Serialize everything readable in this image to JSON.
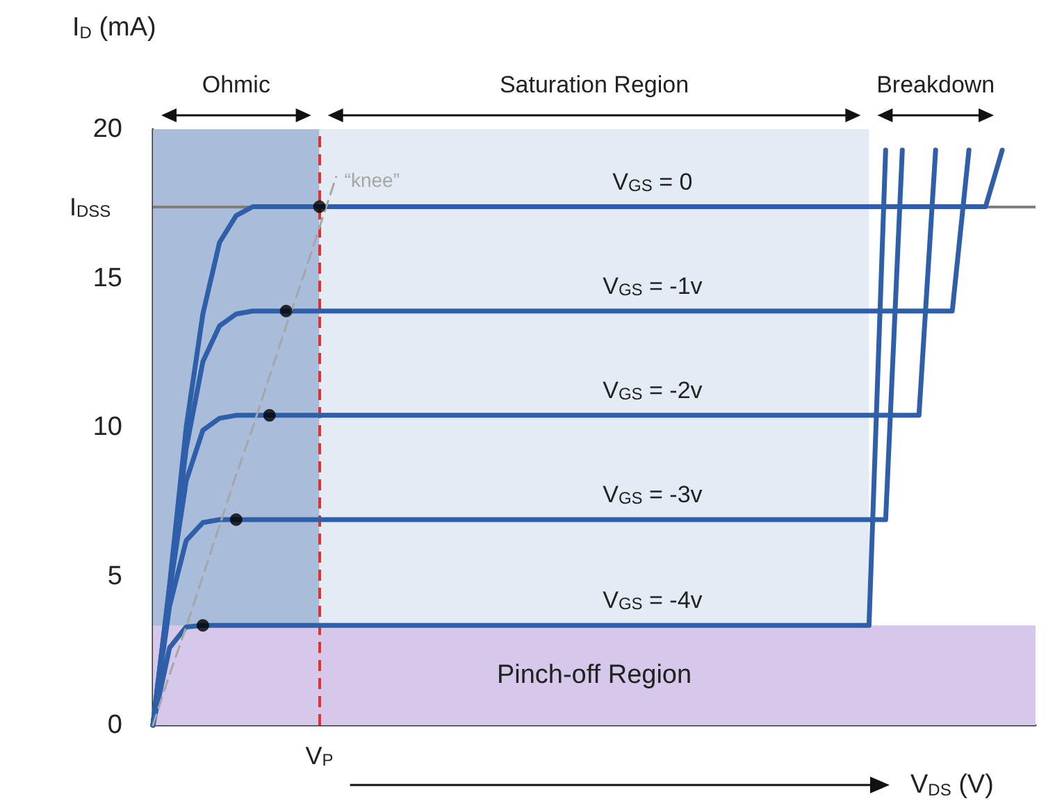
{
  "chart_data": {
    "type": "line",
    "ylabel": "I$_{D}$ (mA)",
    "xlabel": "V$_{DS}$ (V)",
    "ylim": [
      0,
      20
    ],
    "yticks": [
      0,
      5,
      10,
      15,
      20
    ],
    "tick_labels": "y",
    "grid": false,
    "legend": false,
    "marker": "none",
    "line_style": "solid",
    "categories": [
      null,
      null,
      null,
      null,
      null,
      null,
      null,
      null,
      null,
      null,
      null,
      null,
      null,
      null,
      null,
      null,
      null,
      null,
      null,
      null,
      null,
      null,
      null,
      null,
      null,
      null,
      null,
      null,
      null,
      null,
      null,
      null,
      null,
      null,
      null,
      null,
      null,
      null,
      null,
      null,
      null,
      null,
      null,
      null,
      null,
      null,
      null,
      null,
      null,
      null,
      null,
      null
    ],
    "series": [
      {
        "name": "V$_{GS}$ = 0",
        "color": "#2e5fa8",
        "values": [
          0,
          4.7,
          10,
          13.8,
          16.2,
          17.1,
          17.4,
          17.4,
          17.4,
          17.4,
          17.4,
          17.4,
          17.4,
          17.4,
          17.4,
          17.4,
          17.4,
          17.4,
          17.4,
          17.4,
          17.4,
          17.4,
          17.4,
          17.4,
          17.4,
          17.4,
          17.4,
          17.4,
          17.4,
          17.4,
          17.4,
          17.4,
          17.4,
          17.4,
          17.4,
          17.4,
          17.4,
          17.4,
          17.4,
          17.4,
          17.4,
          17.4,
          17.4,
          17.4,
          17.4,
          17.4,
          17.4,
          17.4,
          17.4,
          17.4,
          17.4,
          19.3
        ]
      },
      {
        "name": "V$_{GS}$ = -1v",
        "color": "#2e5fa8",
        "values": [
          0,
          4.6,
          9.3,
          12.2,
          13.4,
          13.8,
          13.9,
          13.9,
          13.9,
          13.9,
          13.9,
          13.9,
          13.9,
          13.9,
          13.9,
          13.9,
          13.9,
          13.9,
          13.9,
          13.9,
          13.9,
          13.9,
          13.9,
          13.9,
          13.9,
          13.9,
          13.9,
          13.9,
          13.9,
          13.9,
          13.9,
          13.9,
          13.9,
          13.9,
          13.9,
          13.9,
          13.9,
          13.9,
          13.9,
          13.9,
          13.9,
          13.9,
          13.9,
          13.9,
          13.9,
          13.9,
          13.9,
          13.9,
          13.9,
          19.3,
          null,
          null
        ]
      },
      {
        "name": "V$_{GS}$ = -2v",
        "color": "#2e5fa8",
        "values": [
          0,
          4.5,
          8.2,
          9.9,
          10.3,
          10.4,
          10.4,
          10.4,
          10.4,
          10.4,
          10.4,
          10.4,
          10.4,
          10.4,
          10.4,
          10.4,
          10.4,
          10.4,
          10.4,
          10.4,
          10.4,
          10.4,
          10.4,
          10.4,
          10.4,
          10.4,
          10.4,
          10.4,
          10.4,
          10.4,
          10.4,
          10.4,
          10.4,
          10.4,
          10.4,
          10.4,
          10.4,
          10.4,
          10.4,
          10.4,
          10.4,
          10.4,
          10.4,
          10.4,
          10.4,
          10.4,
          10.4,
          19.3,
          null,
          null,
          null,
          null
        ]
      },
      {
        "name": "V$_{GS}$ = -3v",
        "color": "#2e5fa8",
        "values": [
          0,
          4,
          6.2,
          6.8,
          6.9,
          6.9,
          6.9,
          6.9,
          6.9,
          6.9,
          6.9,
          6.9,
          6.9,
          6.9,
          6.9,
          6.9,
          6.9,
          6.9,
          6.9,
          6.9,
          6.9,
          6.9,
          6.9,
          6.9,
          6.9,
          6.9,
          6.9,
          6.9,
          6.9,
          6.9,
          6.9,
          6.9,
          6.9,
          6.9,
          6.9,
          6.9,
          6.9,
          6.9,
          6.9,
          6.9,
          6.9,
          6.9,
          6.9,
          6.9,
          6.9,
          19.3,
          null,
          null,
          null,
          null,
          null,
          null
        ]
      },
      {
        "name": "V$_{GS}$ = -4v",
        "color": "#2e5fa8",
        "values": [
          0,
          2.6,
          3.3,
          3.35,
          3.35,
          3.35,
          3.35,
          3.35,
          3.35,
          3.35,
          3.35,
          3.35,
          3.35,
          3.35,
          3.35,
          3.35,
          3.35,
          3.35,
          3.35,
          3.35,
          3.35,
          3.35,
          3.35,
          3.35,
          3.35,
          3.35,
          3.35,
          3.35,
          3.35,
          3.35,
          3.35,
          3.35,
          3.35,
          3.35,
          3.35,
          3.35,
          3.35,
          3.35,
          3.35,
          3.35,
          3.35,
          3.35,
          3.35,
          3.35,
          19.3,
          null,
          null,
          null,
          null,
          null,
          null,
          null
        ]
      },
      {
        "name": "“knee”",
        "color": "#a6a6a6",
        "line_style": "dashed",
        "values": [
          0,
          1.7,
          3.3,
          5,
          6.7,
          8.4,
          10,
          11.7,
          13.4,
          15,
          16.7,
          18.4,
          null,
          null,
          null,
          null,
          null,
          null,
          null,
          null,
          null,
          null,
          null,
          null,
          null,
          null,
          null,
          null,
          null,
          null,
          null,
          null,
          null,
          null,
          null,
          null,
          null,
          null,
          null,
          null,
          null,
          null,
          null,
          null,
          null,
          null,
          null,
          null,
          null,
          null,
          null,
          null
        ]
      },
      {
        "type": "scatter",
        "color": "#000000",
        "marker": "circle",
        "values": [
          null,
          null,
          null,
          3.35,
          null,
          6.9,
          null,
          10.4,
          13.9,
          null,
          17.4,
          null,
          null,
          null,
          null,
          null,
          null,
          null,
          null,
          null,
          null,
          null,
          null,
          null,
          null,
          null,
          null,
          null,
          null,
          null,
          null,
          null,
          null,
          null,
          null,
          null,
          null,
          null,
          null,
          null,
          null,
          null,
          null,
          null,
          null,
          null,
          null,
          null,
          null,
          null,
          null,
          null
        ]
      }
    ],
    "ref_lines": [
      {
        "axis": "y",
        "value": 17.4,
        "label": "I$_{DSS}$",
        "color": "#7f7f7f"
      }
    ],
    "bands": [
      {
        "axis": "y",
        "from": 0,
        "to": 3.35,
        "label": "Pinch-off Region",
        "color": "#d6c8ea"
      }
    ],
    "annotations": [
      "Ohmic",
      "Saturation Region",
      "Breakdown",
      "V$_{P}$"
    ]
  }
}
